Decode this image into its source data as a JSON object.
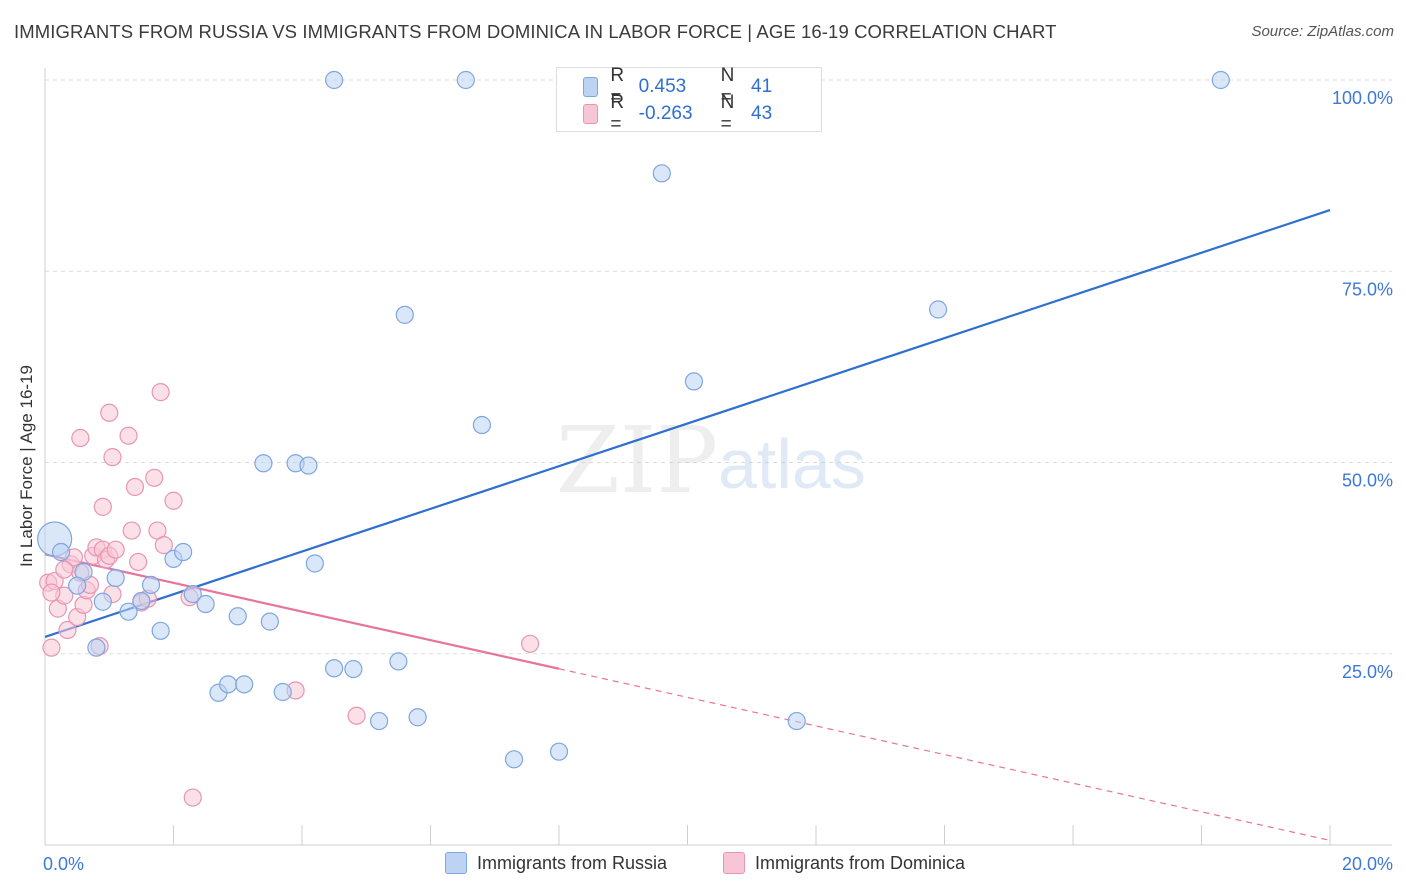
{
  "title": "IMMIGRANTS FROM RUSSIA VS IMMIGRANTS FROM DOMINICA IN LABOR FORCE | AGE 16-19 CORRELATION CHART",
  "source": "Source: ZipAtlas.com",
  "colors": {
    "russia_fill": "#bcd3f3",
    "russia_stroke": "#7ea6df",
    "russia_line": "#2f6fd0",
    "dominica_fill": "#f7c6d6",
    "dominica_stroke": "#e895b3",
    "dominica_line": "#e8739b",
    "axis_text": "#3d78d8"
  },
  "legend": {
    "r_label": "R =",
    "n_label": "N =",
    "russia": {
      "r": "0.453",
      "n": "41"
    },
    "dominica": {
      "r": "-0.263",
      "n": "43"
    }
  },
  "watermark": {
    "zip": "ZIP",
    "atlas": "atlas"
  },
  "chart_data": {
    "type": "scatter",
    "title": "IMMIGRANTS FROM RUSSIA VS IMMIGRANTS FROM DOMINICA IN LABOR FORCE | AGE 16-19 CORRELATION CHART",
    "xlabel": "",
    "ylabel": "In Labor Force | Age 16-19",
    "xlim": [
      0,
      20
    ],
    "ylim": [
      0,
      100
    ],
    "x_tick_labels": [
      "0.0%",
      "20.0%"
    ],
    "y_tick_labels": [
      "25.0%",
      "50.0%",
      "75.0%",
      "100.0%"
    ],
    "y_ticks": [
      25,
      50,
      75,
      100
    ],
    "x_minor_ticks": [
      0,
      2,
      4,
      6,
      8,
      10,
      12,
      14,
      16,
      18,
      20
    ],
    "grid": true,
    "series": [
      {
        "name": "Immigrants from Russia",
        "r": 0.453,
        "n": 41,
        "trend": {
          "x": [
            0,
            20
          ],
          "y": [
            27.2,
            83.0
          ],
          "dashed_from": null
        },
        "points": [
          {
            "x": 0.15,
            "y": 40.0,
            "big": true
          },
          {
            "x": 0.25,
            "y": 38.3
          },
          {
            "x": 0.6,
            "y": 35.7
          },
          {
            "x": 0.5,
            "y": 33.9
          },
          {
            "x": 0.9,
            "y": 31.8
          },
          {
            "x": 1.1,
            "y": 34.9
          },
          {
            "x": 1.3,
            "y": 30.5
          },
          {
            "x": 1.5,
            "y": 31.9
          },
          {
            "x": 1.65,
            "y": 34.0
          },
          {
            "x": 1.8,
            "y": 28.0
          },
          {
            "x": 2.0,
            "y": 37.4
          },
          {
            "x": 2.15,
            "y": 38.3
          },
          {
            "x": 2.3,
            "y": 32.8
          },
          {
            "x": 2.5,
            "y": 31.5
          },
          {
            "x": 3.0,
            "y": 29.9
          },
          {
            "x": 3.5,
            "y": 29.2
          },
          {
            "x": 2.7,
            "y": 19.9
          },
          {
            "x": 2.85,
            "y": 21.0
          },
          {
            "x": 3.1,
            "y": 21.0
          },
          {
            "x": 3.7,
            "y": 20.0
          },
          {
            "x": 3.4,
            "y": 49.9
          },
          {
            "x": 3.9,
            "y": 49.9
          },
          {
            "x": 4.1,
            "y": 49.6
          },
          {
            "x": 4.2,
            "y": 36.8
          },
          {
            "x": 4.5,
            "y": 100.0
          },
          {
            "x": 4.5,
            "y": 23.1
          },
          {
            "x": 4.8,
            "y": 23.0
          },
          {
            "x": 5.2,
            "y": 16.2
          },
          {
            "x": 5.5,
            "y": 24.0
          },
          {
            "x": 5.6,
            "y": 69.3
          },
          {
            "x": 5.8,
            "y": 16.7
          },
          {
            "x": 6.55,
            "y": 100.0
          },
          {
            "x": 6.8,
            "y": 54.9
          },
          {
            "x": 7.3,
            "y": 11.2
          },
          {
            "x": 8.0,
            "y": 12.2
          },
          {
            "x": 9.6,
            "y": 87.8
          },
          {
            "x": 10.1,
            "y": 60.6
          },
          {
            "x": 11.7,
            "y": 16.2
          },
          {
            "x": 13.9,
            "y": 70.0
          },
          {
            "x": 18.3,
            "y": 100.0
          },
          {
            "x": 0.8,
            "y": 25.8
          }
        ]
      },
      {
        "name": "Immigrants from Dominica",
        "r": -0.263,
        "n": 43,
        "trend": {
          "x": [
            0,
            20
          ],
          "y": [
            38.0,
            0.6
          ],
          "dashed_from": 8.0
        },
        "points": [
          {
            "x": 0.05,
            "y": 34.3
          },
          {
            "x": 0.1,
            "y": 25.8
          },
          {
            "x": 0.15,
            "y": 34.5
          },
          {
            "x": 0.2,
            "y": 30.9
          },
          {
            "x": 0.3,
            "y": 32.6
          },
          {
            "x": 0.35,
            "y": 28.1
          },
          {
            "x": 0.4,
            "y": 36.7
          },
          {
            "x": 0.45,
            "y": 37.6
          },
          {
            "x": 0.5,
            "y": 29.8
          },
          {
            "x": 0.55,
            "y": 35.6
          },
          {
            "x": 0.6,
            "y": 31.4
          },
          {
            "x": 0.65,
            "y": 33.3
          },
          {
            "x": 0.7,
            "y": 34.0
          },
          {
            "x": 0.75,
            "y": 37.8
          },
          {
            "x": 0.8,
            "y": 38.9
          },
          {
            "x": 0.85,
            "y": 26.0
          },
          {
            "x": 0.9,
            "y": 38.6
          },
          {
            "x": 0.95,
            "y": 37.3
          },
          {
            "x": 1.0,
            "y": 37.8
          },
          {
            "x": 1.05,
            "y": 32.8
          },
          {
            "x": 1.1,
            "y": 38.6
          },
          {
            "x": 0.55,
            "y": 53.2
          },
          {
            "x": 0.9,
            "y": 44.2
          },
          {
            "x": 1.0,
            "y": 56.5
          },
          {
            "x": 1.05,
            "y": 50.7
          },
          {
            "x": 1.3,
            "y": 53.5
          },
          {
            "x": 1.35,
            "y": 41.1
          },
          {
            "x": 1.4,
            "y": 46.8
          },
          {
            "x": 1.45,
            "y": 37.0
          },
          {
            "x": 1.5,
            "y": 31.7
          },
          {
            "x": 1.6,
            "y": 32.2
          },
          {
            "x": 1.7,
            "y": 48.0
          },
          {
            "x": 1.75,
            "y": 41.1
          },
          {
            "x": 1.8,
            "y": 59.2
          },
          {
            "x": 1.85,
            "y": 39.2
          },
          {
            "x": 2.0,
            "y": 45.0
          },
          {
            "x": 2.25,
            "y": 32.4
          },
          {
            "x": 2.3,
            "y": 6.2
          },
          {
            "x": 3.9,
            "y": 20.2
          },
          {
            "x": 4.85,
            "y": 16.9
          },
          {
            "x": 7.55,
            "y": 26.3
          },
          {
            "x": 0.1,
            "y": 33.0
          },
          {
            "x": 0.3,
            "y": 36.0
          }
        ]
      }
    ]
  },
  "bottom_legend": [
    "Immigrants from Russia",
    "Immigrants from Dominica"
  ]
}
